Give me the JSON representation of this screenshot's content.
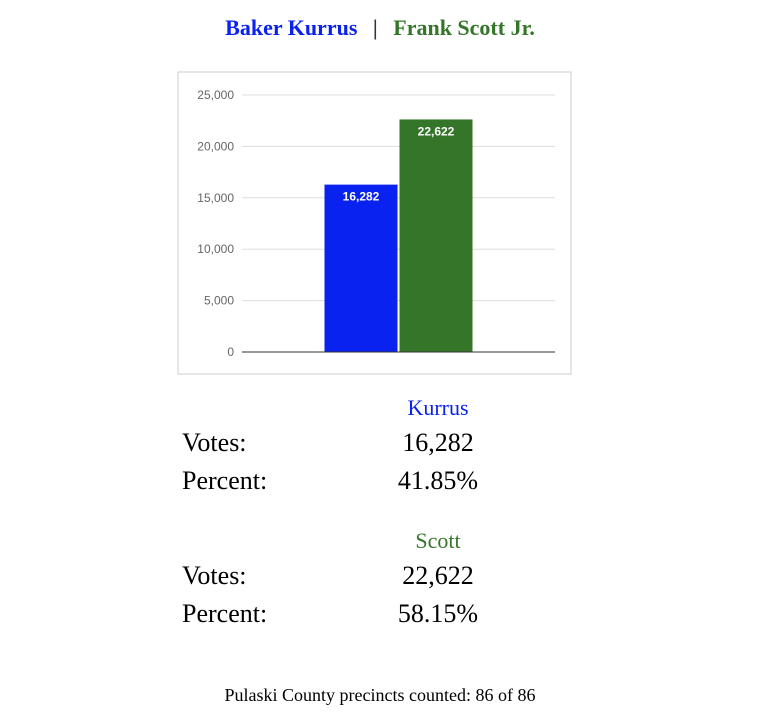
{
  "header": {
    "candidate1": "Baker Kurrus",
    "separator": "|",
    "candidate2": "Frank Scott Jr."
  },
  "chart_data": {
    "type": "bar",
    "values": [
      16282,
      22622
    ],
    "value_labels": [
      "16,282",
      "22,622"
    ],
    "colors": [
      "#0a22f0",
      "#35752a"
    ],
    "ylim": [
      0,
      25000
    ],
    "yticks": [
      0,
      {
        "value": 5000,
        "label": "5,000"
      },
      {
        "value": 10000,
        "label": "10,000"
      },
      {
        "value": 15000,
        "label": "15,000"
      },
      {
        "value": 20000,
        "label": "20,000"
      },
      {
        "value": 25000,
        "label": "25,000"
      }
    ],
    "grid": true
  },
  "results": [
    {
      "name": "Kurrus",
      "color": "#0a22f0",
      "rows": [
        {
          "label": "Votes:",
          "value": "16,282"
        },
        {
          "label": "Percent:",
          "value": "41.85%"
        }
      ]
    },
    {
      "name": "Scott",
      "color": "#35752a",
      "rows": [
        {
          "label": "Votes:",
          "value": "22,622"
        },
        {
          "label": "Percent:",
          "value": "58.15%"
        }
      ]
    }
  ],
  "footer": "Pulaski County precincts counted: 86 of 86"
}
